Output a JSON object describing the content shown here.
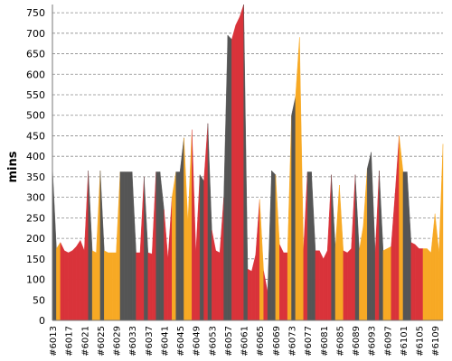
{
  "chart_data": {
    "type": "area",
    "title": "",
    "xlabel": "",
    "ylabel": "mins",
    "ylim": [
      0,
      770
    ],
    "yticks": [
      0,
      50,
      100,
      150,
      200,
      250,
      300,
      350,
      400,
      450,
      500,
      550,
      600,
      650,
      700,
      750
    ],
    "grid": true,
    "first_build": 6013,
    "last_build": 6111,
    "x_tick_labels": [
      "#6013",
      "#6017",
      "#6021",
      "#6025",
      "#6029",
      "#6033",
      "#6037",
      "#6041",
      "#6045",
      "#6049",
      "#6053",
      "#6057",
      "#6061",
      "#6065",
      "#6069",
      "#6073",
      "#6077",
      "#6081",
      "#6085",
      "#6089",
      "#6093",
      "#6097",
      "#6101",
      "#6105",
      "#6109"
    ],
    "colors": {
      "grey": "#555555",
      "red": "#d9333a",
      "orange": "#f7a924"
    },
    "points": [
      {
        "build": 6013,
        "value": 375,
        "color": "grey"
      },
      {
        "build": 6014,
        "value": 175,
        "color": "orange"
      },
      {
        "build": 6015,
        "value": 190,
        "color": "red"
      },
      {
        "build": 6016,
        "value": 170,
        "color": "red"
      },
      {
        "build": 6017,
        "value": 165,
        "color": "red"
      },
      {
        "build": 6018,
        "value": 170,
        "color": "red"
      },
      {
        "build": 6019,
        "value": 180,
        "color": "red"
      },
      {
        "build": 6020,
        "value": 195,
        "color": "red"
      },
      {
        "build": 6021,
        "value": 170,
        "color": "red"
      },
      {
        "build": 6022,
        "value": 365,
        "color": "grey"
      },
      {
        "build": 6023,
        "value": 170,
        "color": "orange"
      },
      {
        "build": 6024,
        "value": 165,
        "color": "orange"
      },
      {
        "build": 6025,
        "value": 365,
        "color": "grey"
      },
      {
        "build": 6026,
        "value": 170,
        "color": "orange"
      },
      {
        "build": 6027,
        "value": 165,
        "color": "orange"
      },
      {
        "build": 6028,
        "value": 165,
        "color": "orange"
      },
      {
        "build": 6029,
        "value": 165,
        "color": "orange"
      },
      {
        "build": 6030,
        "value": 362,
        "color": "grey"
      },
      {
        "build": 6031,
        "value": 362,
        "color": "grey"
      },
      {
        "build": 6032,
        "value": 362,
        "color": "grey"
      },
      {
        "build": 6033,
        "value": 362,
        "color": "grey"
      },
      {
        "build": 6034,
        "value": 165,
        "color": "red"
      },
      {
        "build": 6035,
        "value": 165,
        "color": "red"
      },
      {
        "build": 6036,
        "value": 350,
        "color": "grey"
      },
      {
        "build": 6037,
        "value": 165,
        "color": "red"
      },
      {
        "build": 6038,
        "value": 162,
        "color": "red"
      },
      {
        "build": 6039,
        "value": 362,
        "color": "grey"
      },
      {
        "build": 6040,
        "value": 362,
        "color": "grey"
      },
      {
        "build": 6041,
        "value": 270,
        "color": "red"
      },
      {
        "build": 6042,
        "value": 150,
        "color": "red"
      },
      {
        "build": 6043,
        "value": 300,
        "color": "orange"
      },
      {
        "build": 6044,
        "value": 362,
        "color": "grey"
      },
      {
        "build": 6045,
        "value": 362,
        "color": "grey"
      },
      {
        "build": 6046,
        "value": 445,
        "color": "orange"
      },
      {
        "build": 6047,
        "value": 240,
        "color": "orange"
      },
      {
        "build": 6048,
        "value": 465,
        "color": "red"
      },
      {
        "build": 6049,
        "value": 165,
        "color": "red"
      },
      {
        "build": 6050,
        "value": 355,
        "color": "grey"
      },
      {
        "build": 6051,
        "value": 340,
        "color": "red"
      },
      {
        "build": 6052,
        "value": 480,
        "color": "grey"
      },
      {
        "build": 6053,
        "value": 220,
        "color": "red"
      },
      {
        "build": 6054,
        "value": 170,
        "color": "red"
      },
      {
        "build": 6055,
        "value": 165,
        "color": "red"
      },
      {
        "build": 6056,
        "value": 300,
        "color": "grey"
      },
      {
        "build": 6057,
        "value": 695,
        "color": "grey"
      },
      {
        "build": 6058,
        "value": 685,
        "color": "red"
      },
      {
        "build": 6059,
        "value": 720,
        "color": "red"
      },
      {
        "build": 6060,
        "value": 740,
        "color": "red"
      },
      {
        "build": 6061,
        "value": 770,
        "color": "grey"
      },
      {
        "build": 6062,
        "value": 125,
        "color": "red"
      },
      {
        "build": 6063,
        "value": 120,
        "color": "red"
      },
      {
        "build": 6064,
        "value": 160,
        "color": "red"
      },
      {
        "build": 6065,
        "value": 295,
        "color": "orange"
      },
      {
        "build": 6066,
        "value": 120,
        "color": "red"
      },
      {
        "build": 6067,
        "value": 70,
        "color": "grey"
      },
      {
        "build": 6068,
        "value": 365,
        "color": "grey"
      },
      {
        "build": 6069,
        "value": 355,
        "color": "orange"
      },
      {
        "build": 6070,
        "value": 185,
        "color": "red"
      },
      {
        "build": 6071,
        "value": 165,
        "color": "red"
      },
      {
        "build": 6072,
        "value": 165,
        "color": "orange"
      },
      {
        "build": 6073,
        "value": 500,
        "color": "grey"
      },
      {
        "build": 6074,
        "value": 545,
        "color": "orange"
      },
      {
        "build": 6075,
        "value": 690,
        "color": "orange"
      },
      {
        "build": 6076,
        "value": 170,
        "color": "red"
      },
      {
        "build": 6077,
        "value": 362,
        "color": "grey"
      },
      {
        "build": 6078,
        "value": 362,
        "color": "grey"
      },
      {
        "build": 6079,
        "value": 170,
        "color": "red"
      },
      {
        "build": 6080,
        "value": 170,
        "color": "red"
      },
      {
        "build": 6081,
        "value": 150,
        "color": "red"
      },
      {
        "build": 6082,
        "value": 170,
        "color": "red"
      },
      {
        "build": 6083,
        "value": 355,
        "color": "grey"
      },
      {
        "build": 6084,
        "value": 175,
        "color": "orange"
      },
      {
        "build": 6085,
        "value": 330,
        "color": "orange"
      },
      {
        "build": 6086,
        "value": 170,
        "color": "red"
      },
      {
        "build": 6087,
        "value": 165,
        "color": "red"
      },
      {
        "build": 6088,
        "value": 175,
        "color": "red"
      },
      {
        "build": 6089,
        "value": 355,
        "color": "grey"
      },
      {
        "build": 6090,
        "value": 170,
        "color": "orange"
      },
      {
        "build": 6091,
        "value": 230,
        "color": "orange"
      },
      {
        "build": 6092,
        "value": 370,
        "color": "grey"
      },
      {
        "build": 6093,
        "value": 410,
        "color": "grey"
      },
      {
        "build": 6094,
        "value": 165,
        "color": "red"
      },
      {
        "build": 6095,
        "value": 365,
        "color": "grey"
      },
      {
        "build": 6096,
        "value": 170,
        "color": "orange"
      },
      {
        "build": 6097,
        "value": 175,
        "color": "orange"
      },
      {
        "build": 6098,
        "value": 180,
        "color": "red"
      },
      {
        "build": 6099,
        "value": 310,
        "color": "red"
      },
      {
        "build": 6100,
        "value": 450,
        "color": "orange"
      },
      {
        "build": 6101,
        "value": 362,
        "color": "grey"
      },
      {
        "build": 6102,
        "value": 362,
        "color": "grey"
      },
      {
        "build": 6103,
        "value": 190,
        "color": "red"
      },
      {
        "build": 6104,
        "value": 185,
        "color": "red"
      },
      {
        "build": 6105,
        "value": 175,
        "color": "red"
      },
      {
        "build": 6106,
        "value": 175,
        "color": "orange"
      },
      {
        "build": 6107,
        "value": 175,
        "color": "orange"
      },
      {
        "build": 6108,
        "value": 165,
        "color": "orange"
      },
      {
        "build": 6109,
        "value": 260,
        "color": "orange"
      },
      {
        "build": 6110,
        "value": 165,
        "color": "orange"
      },
      {
        "build": 6111,
        "value": 430,
        "color": "red"
      }
    ]
  }
}
